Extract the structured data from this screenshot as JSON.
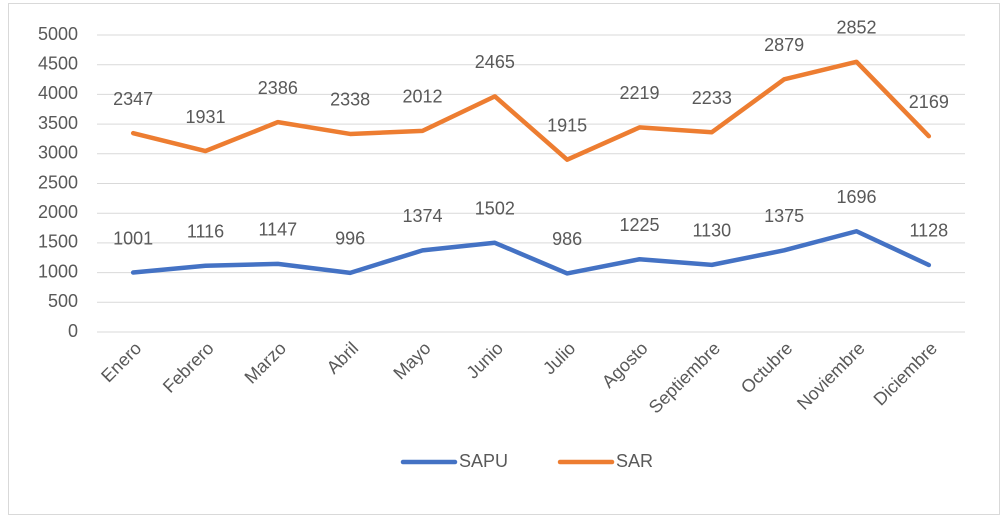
{
  "chart_data": {
    "type": "line",
    "stacked": true,
    "categories": [
      "Enero",
      "Febrero",
      "Marzo",
      "Abril",
      "Mayo",
      "Junio",
      "Julio",
      "Agosto",
      "Septiembre",
      "Octubre",
      "Noviembre",
      "Diciembre"
    ],
    "series": [
      {
        "name": "SAPU",
        "color": "#4472c4",
        "values": [
          1001,
          1116,
          1147,
          996,
          1374,
          1502,
          986,
          1225,
          1130,
          1375,
          1696,
          1128
        ]
      },
      {
        "name": "SAR",
        "color": "#ed7d31",
        "values": [
          2347,
          1931,
          2386,
          2338,
          2012,
          2465,
          1915,
          2219,
          2233,
          2879,
          2852,
          2169
        ]
      }
    ],
    "ylim": [
      0,
      5000
    ],
    "yticks": [
      0,
      500,
      1000,
      1500,
      2000,
      2500,
      3000,
      3500,
      4000,
      4500,
      5000
    ],
    "grid": true,
    "legend": "bottom"
  }
}
